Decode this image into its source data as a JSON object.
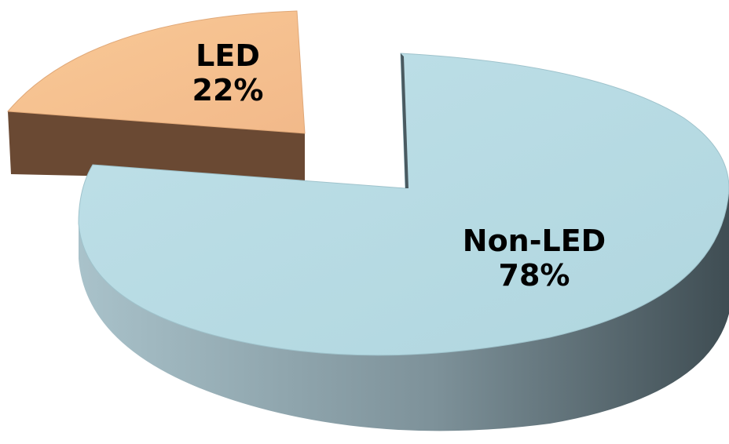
{
  "chart_data": {
    "type": "pie",
    "style": "3d-exploded",
    "slices": [
      {
        "category": "Non-LED",
        "value": 78,
        "value_label": "78%",
        "color": "#b7dbe3",
        "side_color": "#4a5a60"
      },
      {
        "category": "LED",
        "value": 22,
        "value_label": "22%",
        "color": "#f6c08e",
        "side_color": "#6b4a33"
      }
    ],
    "legend": "none"
  }
}
